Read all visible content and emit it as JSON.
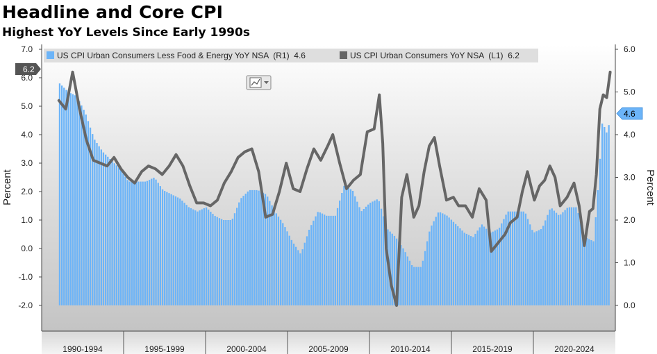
{
  "chart_data": {
    "type": "bar+line",
    "title": "Headline and Core CPI",
    "subtitle": "Highest YoY Levels Since Early 1990s",
    "ylabel_left": "Percent",
    "ylabel_right": "Percent",
    "left_axis": {
      "ylim": [
        -2.0,
        7.0
      ],
      "ticks": [
        "-2.0",
        "-1.0",
        "0.0",
        "1.0",
        "2.0",
        "3.0",
        "4.0",
        "5.0",
        "6.0",
        "7.0"
      ]
    },
    "right_axis": {
      "ylim": [
        0.0,
        6.0
      ],
      "ticks": [
        "0.0",
        "1.0",
        "2.0",
        "3.0",
        "4.0",
        "5.0",
        "6.0"
      ]
    },
    "x_labels": [
      "1990-1994",
      "1995-1999",
      "2000-2004",
      "2005-2009",
      "2010-2014",
      "2015-2019",
      "2020-2024"
    ],
    "x_range": [
      1989.0,
      2022.3
    ],
    "last_value_badges": {
      "left": "6.2",
      "right": "4.6"
    },
    "legend": {
      "placement": "top"
    },
    "series": [
      {
        "name": "US CPI Urban Consumers Less Food & Energy YoY NSA  (R1)  4.6",
        "type": "bar",
        "axis": "right",
        "color": "#6cb4f8",
        "points": [
          [
            1990.0,
            5.2
          ],
          [
            1990.5,
            5.0
          ],
          [
            1991.0,
            4.9
          ],
          [
            1991.5,
            4.5
          ],
          [
            1992.0,
            3.9
          ],
          [
            1992.5,
            3.6
          ],
          [
            1993.0,
            3.4
          ],
          [
            1993.5,
            3.2
          ],
          [
            1994.0,
            2.9
          ],
          [
            1994.5,
            2.9
          ],
          [
            1995.0,
            2.9
          ],
          [
            1995.5,
            3.0
          ],
          [
            1996.0,
            2.7
          ],
          [
            1996.5,
            2.6
          ],
          [
            1997.0,
            2.5
          ],
          [
            1997.5,
            2.3
          ],
          [
            1998.0,
            2.2
          ],
          [
            1998.5,
            2.3
          ],
          [
            1999.0,
            2.1
          ],
          [
            1999.5,
            2.0
          ],
          [
            2000.0,
            2.0
          ],
          [
            2000.5,
            2.5
          ],
          [
            2001.0,
            2.7
          ],
          [
            2001.5,
            2.7
          ],
          [
            2002.0,
            2.6
          ],
          [
            2002.5,
            2.2
          ],
          [
            2003.0,
            1.9
          ],
          [
            2003.5,
            1.5
          ],
          [
            2004.0,
            1.2
          ],
          [
            2004.5,
            1.8
          ],
          [
            2005.0,
            2.2
          ],
          [
            2005.5,
            2.1
          ],
          [
            2006.0,
            2.1
          ],
          [
            2006.5,
            2.8
          ],
          [
            2007.0,
            2.7
          ],
          [
            2007.5,
            2.2
          ],
          [
            2008.0,
            2.4
          ],
          [
            2008.5,
            2.5
          ],
          [
            2009.0,
            1.8
          ],
          [
            2009.5,
            1.6
          ],
          [
            2010.0,
            1.3
          ],
          [
            2010.5,
            0.9
          ],
          [
            2011.0,
            0.9
          ],
          [
            2011.5,
            1.8
          ],
          [
            2012.0,
            2.2
          ],
          [
            2012.5,
            2.1
          ],
          [
            2013.0,
            1.9
          ],
          [
            2013.5,
            1.7
          ],
          [
            2014.0,
            1.6
          ],
          [
            2014.5,
            1.9
          ],
          [
            2015.0,
            1.7
          ],
          [
            2015.5,
            1.8
          ],
          [
            2016.0,
            2.2
          ],
          [
            2016.5,
            2.2
          ],
          [
            2017.0,
            2.2
          ],
          [
            2017.5,
            1.7
          ],
          [
            2018.0,
            1.8
          ],
          [
            2018.5,
            2.3
          ],
          [
            2019.0,
            2.1
          ],
          [
            2019.5,
            2.3
          ],
          [
            2020.0,
            2.3
          ],
          [
            2020.5,
            1.6
          ],
          [
            2021.0,
            1.5
          ],
          [
            2021.3,
            3.0
          ],
          [
            2021.5,
            4.3
          ],
          [
            2021.8,
            4.0
          ],
          [
            2022.0,
            4.6
          ]
        ]
      },
      {
        "name": "US CPI Urban Consumers YoY NSA  (L1)  6.2",
        "type": "line",
        "axis": "left",
        "color": "#666666",
        "points": [
          [
            1990.0,
            5.2
          ],
          [
            1990.4,
            4.9
          ],
          [
            1990.8,
            6.2
          ],
          [
            1991.2,
            4.9
          ],
          [
            1991.6,
            3.8
          ],
          [
            1992.0,
            3.1
          ],
          [
            1992.4,
            3.0
          ],
          [
            1992.8,
            2.9
          ],
          [
            1993.2,
            3.2
          ],
          [
            1993.6,
            2.8
          ],
          [
            1994.0,
            2.5
          ],
          [
            1994.4,
            2.3
          ],
          [
            1994.8,
            2.7
          ],
          [
            1995.2,
            2.9
          ],
          [
            1995.6,
            2.8
          ],
          [
            1996.0,
            2.6
          ],
          [
            1996.4,
            2.9
          ],
          [
            1996.8,
            3.3
          ],
          [
            1997.2,
            2.9
          ],
          [
            1997.6,
            2.2
          ],
          [
            1998.0,
            1.6
          ],
          [
            1998.4,
            1.6
          ],
          [
            1998.8,
            1.5
          ],
          [
            1999.2,
            1.7
          ],
          [
            1999.6,
            2.3
          ],
          [
            2000.0,
            2.7
          ],
          [
            2000.4,
            3.2
          ],
          [
            2000.8,
            3.4
          ],
          [
            2001.2,
            3.5
          ],
          [
            2001.6,
            2.7
          ],
          [
            2002.0,
            1.1
          ],
          [
            2002.4,
            1.2
          ],
          [
            2002.8,
            2.0
          ],
          [
            2003.2,
            3.0
          ],
          [
            2003.6,
            2.1
          ],
          [
            2004.0,
            2.0
          ],
          [
            2004.4,
            2.8
          ],
          [
            2004.8,
            3.5
          ],
          [
            2005.2,
            3.1
          ],
          [
            2005.6,
            3.6
          ],
          [
            2005.9,
            4.0
          ],
          [
            2006.3,
            3.0
          ],
          [
            2006.7,
            2.1
          ],
          [
            2007.1,
            2.4
          ],
          [
            2007.5,
            2.6
          ],
          [
            2007.9,
            4.1
          ],
          [
            2008.3,
            4.2
          ],
          [
            2008.6,
            5.4
          ],
          [
            2008.8,
            3.7
          ],
          [
            2009.0,
            0.0
          ],
          [
            2009.3,
            -1.3
          ],
          [
            2009.6,
            -2.0
          ],
          [
            2009.9,
            1.8
          ],
          [
            2010.2,
            2.6
          ],
          [
            2010.6,
            1.1
          ],
          [
            2010.9,
            1.5
          ],
          [
            2011.2,
            2.7
          ],
          [
            2011.5,
            3.6
          ],
          [
            2011.8,
            3.9
          ],
          [
            2012.1,
            2.9
          ],
          [
            2012.5,
            1.7
          ],
          [
            2012.9,
            1.8
          ],
          [
            2013.2,
            1.5
          ],
          [
            2013.6,
            1.5
          ],
          [
            2014.0,
            1.1
          ],
          [
            2014.4,
            2.1
          ],
          [
            2014.8,
            1.7
          ],
          [
            2015.1,
            -0.1
          ],
          [
            2015.5,
            0.2
          ],
          [
            2015.9,
            0.5
          ],
          [
            2016.2,
            0.9
          ],
          [
            2016.6,
            1.1
          ],
          [
            2016.9,
            2.0
          ],
          [
            2017.2,
            2.7
          ],
          [
            2017.6,
            1.7
          ],
          [
            2017.9,
            2.2
          ],
          [
            2018.2,
            2.4
          ],
          [
            2018.5,
            2.9
          ],
          [
            2018.8,
            2.5
          ],
          [
            2019.1,
            1.5
          ],
          [
            2019.5,
            1.8
          ],
          [
            2019.9,
            2.3
          ],
          [
            2020.2,
            1.5
          ],
          [
            2020.5,
            0.1
          ],
          [
            2020.8,
            1.3
          ],
          [
            2021.0,
            1.4
          ],
          [
            2021.2,
            2.6
          ],
          [
            2021.4,
            4.9
          ],
          [
            2021.6,
            5.4
          ],
          [
            2021.8,
            5.3
          ],
          [
            2022.0,
            6.2
          ]
        ]
      }
    ]
  },
  "toolbar": {
    "icon": "chart-type-icon"
  }
}
